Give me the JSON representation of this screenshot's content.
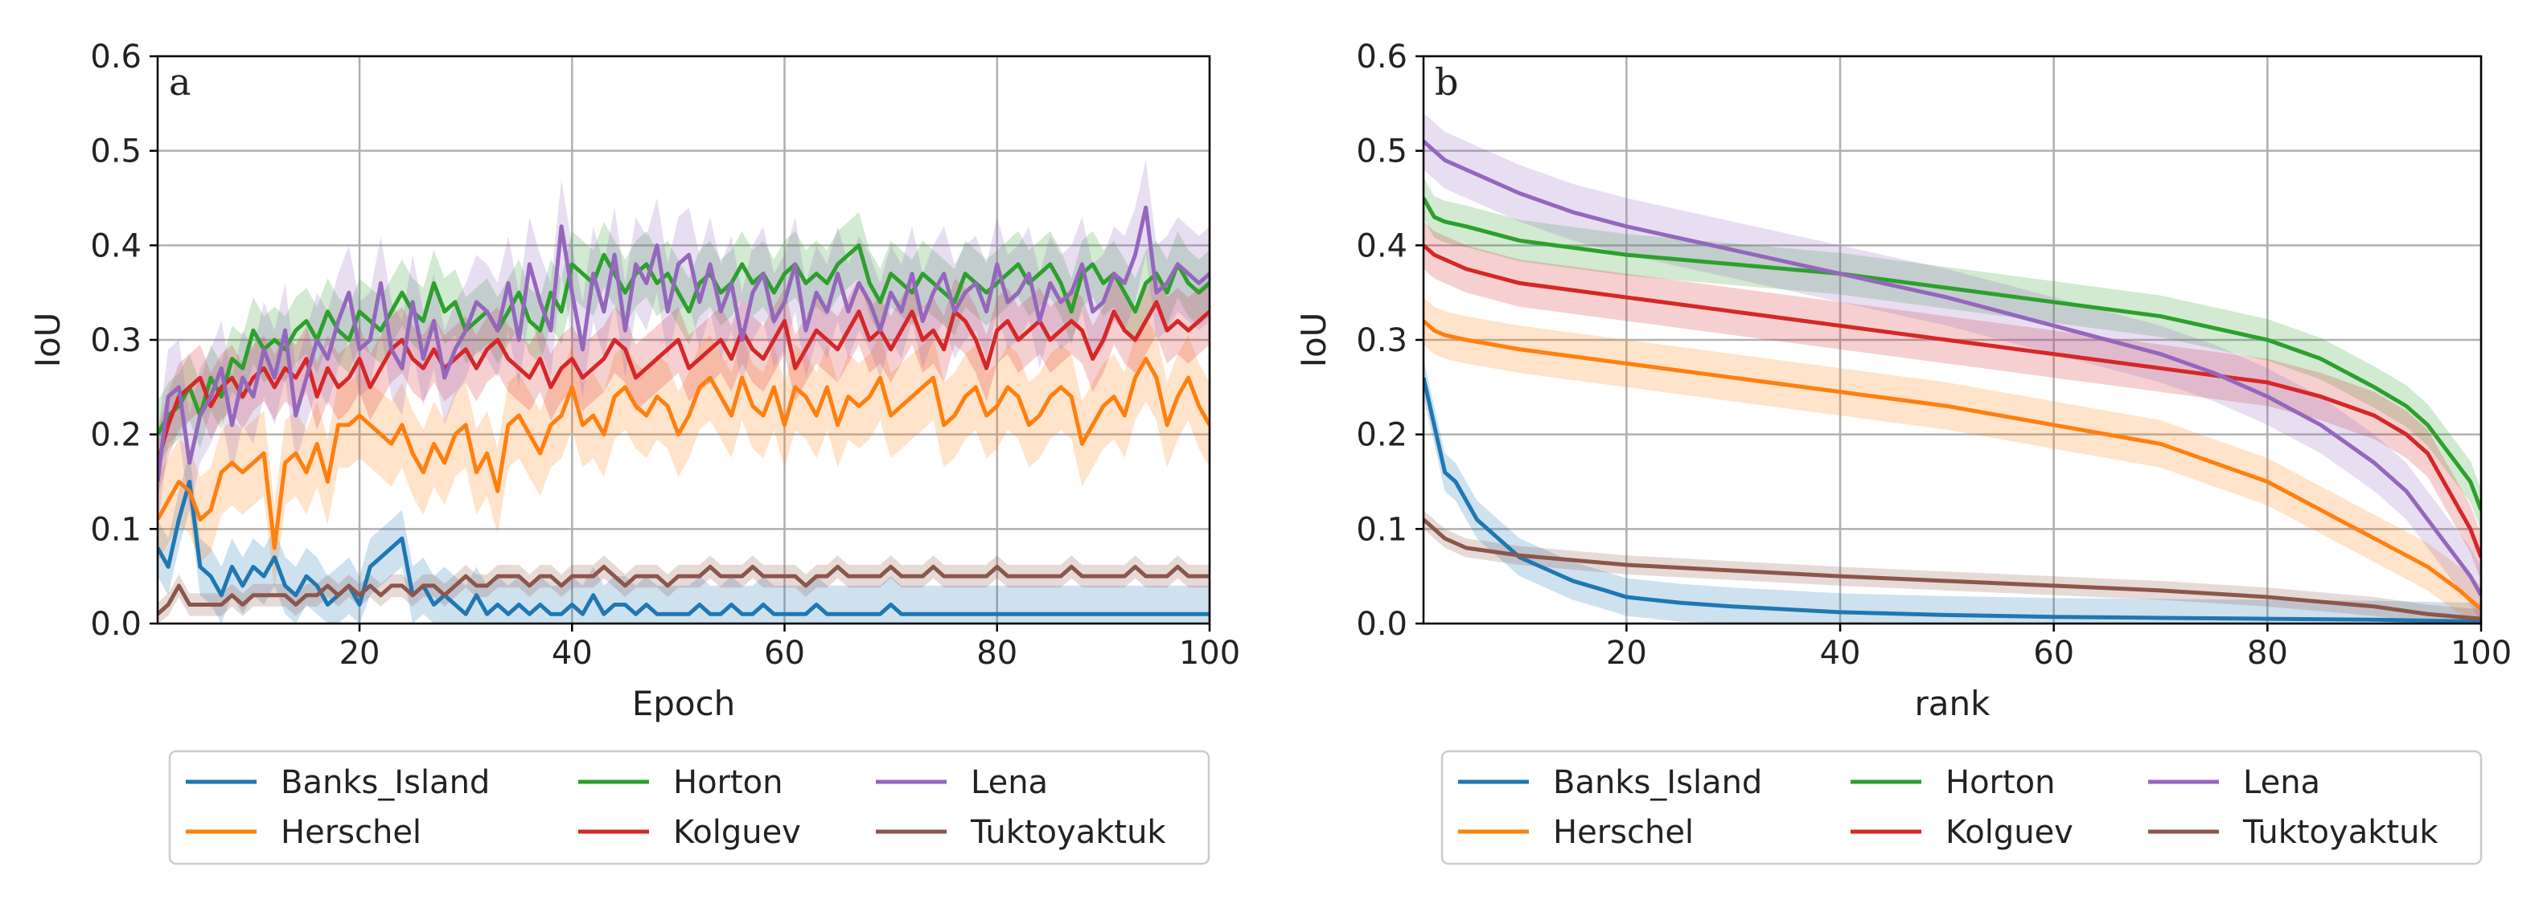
{
  "figure": {
    "legend_entries": [
      "Banks_Island",
      "Herschel",
      "Horton",
      "Kolguev",
      "Lena",
      "Tuktoyaktuk"
    ],
    "colors": {
      "Banks_Island": "#1f77b4",
      "Herschel": "#ff7f0e",
      "Horton": "#2ca02c",
      "Kolguev": "#d62728",
      "Lena": "#9467bd",
      "Tuktoyaktuk": "#8c564b",
      "grid": "#b0b0b0"
    }
  },
  "chart_data": [
    {
      "type": "line",
      "panel_label": "a",
      "xlabel": "Epoch",
      "ylabel": "IoU",
      "xlim": [
        1,
        100
      ],
      "ylim": [
        0,
        0.6
      ],
      "xticks": [
        20,
        40,
        60,
        80,
        100
      ],
      "yticks": [
        "0.0",
        "0.1",
        "0.2",
        "0.3",
        "0.4",
        "0.5",
        "0.6"
      ],
      "grid": true,
      "legend_position": "below",
      "series": [
        {
          "name": "Banks_Island",
          "values": [
            0.08,
            0.06,
            0.11,
            0.15,
            0.06,
            0.05,
            0.03,
            0.06,
            0.04,
            0.06,
            0.05,
            0.07,
            0.04,
            0.03,
            0.05,
            0.04,
            0.02,
            0.03,
            0.04,
            0.02,
            0.06,
            0.07,
            0.08,
            0.09,
            0.03,
            0.04,
            0.02,
            0.03,
            0.02,
            0.01,
            0.03,
            0.01,
            0.02,
            0.01,
            0.02,
            0.01,
            0.02,
            0.01,
            0.01,
            0.02,
            0.01,
            0.03,
            0.01,
            0.02,
            0.02,
            0.01,
            0.02,
            0.01,
            0.01,
            0.01,
            0.01,
            0.02,
            0.01,
            0.01,
            0.02,
            0.01,
            0.01,
            0.02,
            0.01,
            0.01,
            0.01,
            0.01,
            0.02,
            0.01,
            0.01,
            0.01,
            0.01,
            0.01,
            0.01,
            0.02,
            0.01,
            0.01,
            0.01,
            0.01,
            0.01,
            0.01,
            0.01,
            0.01,
            0.01,
            0.01,
            0.01,
            0.01,
            0.01,
            0.01,
            0.01,
            0.01,
            0.01,
            0.01,
            0.01,
            0.01,
            0.01,
            0.01,
            0.01,
            0.01,
            0.01,
            0.01,
            0.01,
            0.01,
            0.01,
            0.01
          ]
        },
        {
          "name": "Herschel",
          "values": [
            0.11,
            0.13,
            0.15,
            0.14,
            0.11,
            0.12,
            0.16,
            0.17,
            0.16,
            0.17,
            0.18,
            0.08,
            0.17,
            0.18,
            0.16,
            0.19,
            0.15,
            0.21,
            0.21,
            0.22,
            0.21,
            0.2,
            0.19,
            0.21,
            0.18,
            0.16,
            0.19,
            0.17,
            0.2,
            0.21,
            0.16,
            0.18,
            0.14,
            0.21,
            0.22,
            0.2,
            0.18,
            0.21,
            0.22,
            0.25,
            0.21,
            0.22,
            0.2,
            0.24,
            0.25,
            0.23,
            0.22,
            0.24,
            0.23,
            0.2,
            0.22,
            0.25,
            0.26,
            0.24,
            0.22,
            0.26,
            0.23,
            0.22,
            0.25,
            0.21,
            0.25,
            0.24,
            0.22,
            0.25,
            0.21,
            0.24,
            0.23,
            0.24,
            0.26,
            0.22,
            0.23,
            0.24,
            0.25,
            0.26,
            0.21,
            0.22,
            0.24,
            0.25,
            0.22,
            0.23,
            0.25,
            0.24,
            0.21,
            0.22,
            0.24,
            0.25,
            0.24,
            0.19,
            0.21,
            0.23,
            0.24,
            0.22,
            0.26,
            0.28,
            0.26,
            0.21,
            0.24,
            0.26,
            0.23,
            0.21
          ]
        },
        {
          "name": "Horton",
          "values": [
            0.2,
            0.22,
            0.23,
            0.25,
            0.22,
            0.26,
            0.24,
            0.28,
            0.27,
            0.31,
            0.29,
            0.3,
            0.29,
            0.31,
            0.32,
            0.3,
            0.33,
            0.31,
            0.3,
            0.33,
            0.32,
            0.31,
            0.33,
            0.35,
            0.33,
            0.32,
            0.36,
            0.33,
            0.34,
            0.31,
            0.32,
            0.33,
            0.31,
            0.33,
            0.35,
            0.32,
            0.31,
            0.35,
            0.33,
            0.38,
            0.37,
            0.36,
            0.39,
            0.37,
            0.35,
            0.37,
            0.38,
            0.36,
            0.37,
            0.35,
            0.33,
            0.36,
            0.37,
            0.35,
            0.36,
            0.38,
            0.36,
            0.37,
            0.35,
            0.37,
            0.38,
            0.36,
            0.37,
            0.36,
            0.38,
            0.39,
            0.4,
            0.36,
            0.34,
            0.37,
            0.36,
            0.35,
            0.37,
            0.36,
            0.35,
            0.34,
            0.37,
            0.36,
            0.35,
            0.36,
            0.37,
            0.38,
            0.36,
            0.37,
            0.38,
            0.36,
            0.33,
            0.37,
            0.38,
            0.36,
            0.37,
            0.35,
            0.33,
            0.36,
            0.37,
            0.35,
            0.38,
            0.36,
            0.35,
            0.36
          ]
        },
        {
          "name": "Kolguev",
          "values": [
            0.17,
            0.21,
            0.24,
            0.25,
            0.26,
            0.23,
            0.25,
            0.26,
            0.24,
            0.26,
            0.27,
            0.25,
            0.27,
            0.26,
            0.28,
            0.24,
            0.27,
            0.25,
            0.26,
            0.28,
            0.25,
            0.27,
            0.29,
            0.3,
            0.28,
            0.27,
            0.29,
            0.27,
            0.28,
            0.29,
            0.27,
            0.29,
            0.3,
            0.28,
            0.27,
            0.26,
            0.28,
            0.25,
            0.27,
            0.28,
            0.26,
            0.27,
            0.28,
            0.3,
            0.29,
            0.26,
            0.27,
            0.28,
            0.29,
            0.3,
            0.27,
            0.28,
            0.29,
            0.3,
            0.28,
            0.31,
            0.29,
            0.28,
            0.3,
            0.32,
            0.27,
            0.29,
            0.31,
            0.3,
            0.29,
            0.31,
            0.33,
            0.3,
            0.31,
            0.29,
            0.31,
            0.33,
            0.3,
            0.31,
            0.29,
            0.33,
            0.32,
            0.3,
            0.27,
            0.31,
            0.32,
            0.3,
            0.31,
            0.32,
            0.3,
            0.31,
            0.32,
            0.31,
            0.28,
            0.3,
            0.33,
            0.31,
            0.3,
            0.32,
            0.34,
            0.31,
            0.32,
            0.31,
            0.32,
            0.33
          ]
        },
        {
          "name": "Lena",
          "values": [
            0.15,
            0.24,
            0.25,
            0.17,
            0.22,
            0.24,
            0.27,
            0.21,
            0.26,
            0.24,
            0.29,
            0.26,
            0.31,
            0.22,
            0.26,
            0.3,
            0.28,
            0.32,
            0.35,
            0.29,
            0.3,
            0.36,
            0.29,
            0.27,
            0.34,
            0.28,
            0.32,
            0.26,
            0.29,
            0.31,
            0.34,
            0.33,
            0.31,
            0.36,
            0.3,
            0.38,
            0.34,
            0.31,
            0.42,
            0.35,
            0.29,
            0.37,
            0.33,
            0.39,
            0.31,
            0.38,
            0.36,
            0.4,
            0.33,
            0.38,
            0.39,
            0.34,
            0.38,
            0.33,
            0.36,
            0.3,
            0.35,
            0.37,
            0.32,
            0.34,
            0.38,
            0.31,
            0.35,
            0.33,
            0.37,
            0.33,
            0.36,
            0.34,
            0.31,
            0.35,
            0.33,
            0.37,
            0.32,
            0.35,
            0.37,
            0.33,
            0.35,
            0.36,
            0.33,
            0.38,
            0.34,
            0.35,
            0.37,
            0.32,
            0.36,
            0.34,
            0.35,
            0.38,
            0.33,
            0.34,
            0.37,
            0.36,
            0.39,
            0.44,
            0.35,
            0.36,
            0.38,
            0.37,
            0.36,
            0.37
          ]
        },
        {
          "name": "Tuktoyaktuk",
          "values": [
            0.01,
            0.02,
            0.04,
            0.02,
            0.02,
            0.02,
            0.02,
            0.03,
            0.02,
            0.03,
            0.03,
            0.03,
            0.03,
            0.02,
            0.03,
            0.03,
            0.04,
            0.03,
            0.04,
            0.03,
            0.04,
            0.03,
            0.04,
            0.04,
            0.03,
            0.04,
            0.04,
            0.03,
            0.04,
            0.05,
            0.04,
            0.04,
            0.05,
            0.05,
            0.05,
            0.04,
            0.05,
            0.05,
            0.04,
            0.05,
            0.05,
            0.05,
            0.06,
            0.05,
            0.04,
            0.05,
            0.05,
            0.05,
            0.04,
            0.05,
            0.05,
            0.05,
            0.06,
            0.05,
            0.05,
            0.05,
            0.06,
            0.05,
            0.05,
            0.05,
            0.05,
            0.04,
            0.05,
            0.05,
            0.06,
            0.05,
            0.05,
            0.05,
            0.05,
            0.06,
            0.05,
            0.05,
            0.05,
            0.06,
            0.05,
            0.05,
            0.05,
            0.05,
            0.05,
            0.06,
            0.05,
            0.05,
            0.05,
            0.05,
            0.05,
            0.05,
            0.06,
            0.05,
            0.05,
            0.05,
            0.05,
            0.05,
            0.06,
            0.05,
            0.05,
            0.05,
            0.06,
            0.05,
            0.05,
            0.05
          ]
        }
      ]
    },
    {
      "type": "line",
      "panel_label": "b",
      "xlabel": "rank",
      "ylabel": "IoU",
      "xlim": [
        1,
        100
      ],
      "ylim": [
        0,
        0.6
      ],
      "xticks": [
        20,
        40,
        60,
        80,
        100
      ],
      "yticks": [
        "0.0",
        "0.1",
        "0.2",
        "0.3",
        "0.4",
        "0.5",
        "0.6"
      ],
      "grid": true,
      "legend_position": "below",
      "series": [
        {
          "name": "Banks_Island",
          "x": [
            1,
            2,
            3,
            4,
            5,
            6,
            7,
            8,
            10,
            12,
            15,
            18,
            20,
            25,
            30,
            40,
            50,
            60,
            70,
            80,
            90,
            100
          ],
          "values": [
            0.26,
            0.21,
            0.16,
            0.15,
            0.13,
            0.11,
            0.1,
            0.09,
            0.07,
            0.06,
            0.045,
            0.035,
            0.028,
            0.022,
            0.018,
            0.012,
            0.009,
            0.007,
            0.006,
            0.005,
            0.004,
            0.002
          ]
        },
        {
          "name": "Herschel",
          "x": [
            1,
            2,
            3,
            5,
            10,
            20,
            30,
            40,
            50,
            60,
            70,
            80,
            85,
            90,
            95,
            98,
            100
          ],
          "values": [
            0.32,
            0.31,
            0.305,
            0.3,
            0.29,
            0.275,
            0.26,
            0.245,
            0.23,
            0.21,
            0.19,
            0.15,
            0.12,
            0.09,
            0.06,
            0.035,
            0.015
          ]
        },
        {
          "name": "Horton",
          "x": [
            1,
            2,
            3,
            5,
            10,
            20,
            30,
            40,
            50,
            60,
            70,
            80,
            85,
            90,
            93,
            95,
            97,
            99,
            100
          ],
          "values": [
            0.45,
            0.43,
            0.425,
            0.42,
            0.405,
            0.39,
            0.38,
            0.37,
            0.355,
            0.34,
            0.325,
            0.3,
            0.28,
            0.25,
            0.23,
            0.21,
            0.18,
            0.15,
            0.12
          ]
        },
        {
          "name": "Kolguev",
          "x": [
            1,
            2,
            3,
            5,
            10,
            20,
            30,
            40,
            50,
            60,
            70,
            80,
            85,
            90,
            93,
            95,
            97,
            99,
            100
          ],
          "values": [
            0.4,
            0.39,
            0.385,
            0.375,
            0.36,
            0.345,
            0.33,
            0.315,
            0.3,
            0.285,
            0.27,
            0.255,
            0.24,
            0.22,
            0.2,
            0.18,
            0.14,
            0.1,
            0.07
          ]
        },
        {
          "name": "Lena",
          "x": [
            1,
            2,
            3,
            5,
            10,
            15,
            20,
            30,
            40,
            50,
            60,
            70,
            75,
            80,
            85,
            90,
            93,
            95,
            97,
            99,
            100
          ],
          "values": [
            0.51,
            0.5,
            0.49,
            0.48,
            0.455,
            0.435,
            0.42,
            0.395,
            0.37,
            0.345,
            0.315,
            0.285,
            0.265,
            0.24,
            0.21,
            0.17,
            0.14,
            0.11,
            0.08,
            0.05,
            0.03
          ]
        },
        {
          "name": "Tuktoyaktuk",
          "x": [
            1,
            2,
            3,
            5,
            10,
            20,
            30,
            40,
            50,
            60,
            70,
            80,
            90,
            95,
            100
          ],
          "values": [
            0.11,
            0.1,
            0.09,
            0.08,
            0.072,
            0.062,
            0.056,
            0.05,
            0.045,
            0.04,
            0.035,
            0.028,
            0.018,
            0.01,
            0.005
          ]
        }
      ]
    }
  ]
}
